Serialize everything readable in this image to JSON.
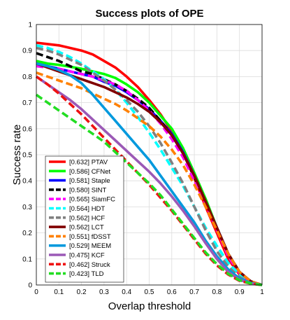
{
  "chart_data": {
    "type": "line",
    "title": "Success plots of OPE",
    "xlabel": "Overlap threshold",
    "ylabel": "Success rate",
    "xlim": [
      0,
      1
    ],
    "ylim": [
      0,
      1
    ],
    "xticks": [
      "0",
      "0.1",
      "0.2",
      "0.3",
      "0.4",
      "0.5",
      "0.6",
      "0.7",
      "0.8",
      "0.9",
      "1"
    ],
    "yticks": [
      "0",
      "0.1",
      "0.2",
      "0.3",
      "0.4",
      "0.5",
      "0.6",
      "0.7",
      "0.8",
      "0.9",
      "1"
    ],
    "grid": true,
    "legend_position": "bottom-left",
    "x": [
      0,
      0.05,
      0.1,
      0.15,
      0.2,
      0.25,
      0.3,
      0.35,
      0.4,
      0.45,
      0.5,
      0.55,
      0.6,
      0.65,
      0.7,
      0.75,
      0.8,
      0.85,
      0.9,
      0.95,
      1
    ],
    "series": [
      {
        "name": "[0.632] PTAV",
        "color": "#ff0000",
        "style": "solid",
        "values": [
          0.93,
          0.925,
          0.92,
          0.91,
          0.9,
          0.885,
          0.86,
          0.835,
          0.8,
          0.76,
          0.71,
          0.655,
          0.59,
          0.51,
          0.41,
          0.3,
          0.2,
          0.1,
          0.04,
          0.012,
          0.0
        ]
      },
      {
        "name": "[0.586] CFNet",
        "color": "#00ff00",
        "style": "solid",
        "values": [
          0.86,
          0.85,
          0.845,
          0.838,
          0.83,
          0.82,
          0.81,
          0.795,
          0.77,
          0.74,
          0.7,
          0.65,
          0.6,
          0.525,
          0.43,
          0.33,
          0.22,
          0.12,
          0.05,
          0.013,
          0.0
        ]
      },
      {
        "name": "[0.581] Staple",
        "color": "#0000ff",
        "style": "solid",
        "values": [
          0.85,
          0.84,
          0.83,
          0.82,
          0.81,
          0.8,
          0.78,
          0.765,
          0.74,
          0.71,
          0.675,
          0.63,
          0.58,
          0.51,
          0.42,
          0.32,
          0.22,
          0.12,
          0.05,
          0.014,
          0.0
        ]
      },
      {
        "name": "[0.580] SINT",
        "color": "#000000",
        "style": "dashed",
        "values": [
          0.89,
          0.875,
          0.86,
          0.84,
          0.82,
          0.81,
          0.79,
          0.77,
          0.745,
          0.715,
          0.68,
          0.63,
          0.575,
          0.505,
          0.415,
          0.32,
          0.22,
          0.12,
          0.05,
          0.014,
          0.0
        ]
      },
      {
        "name": "[0.565] SiamFC",
        "color": "#ff00ff",
        "style": "dashed",
        "values": [
          0.84,
          0.835,
          0.83,
          0.82,
          0.81,
          0.8,
          0.785,
          0.77,
          0.745,
          0.71,
          0.67,
          0.62,
          0.56,
          0.49,
          0.4,
          0.31,
          0.21,
          0.11,
          0.045,
          0.012,
          0.0
        ]
      },
      {
        "name": "[0.564] HDT",
        "color": "#00ffff",
        "style": "dashed",
        "values": [
          0.92,
          0.91,
          0.895,
          0.875,
          0.85,
          0.82,
          0.79,
          0.75,
          0.7,
          0.645,
          0.585,
          0.52,
          0.45,
          0.38,
          0.3,
          0.22,
          0.15,
          0.085,
          0.04,
          0.012,
          0.0
        ]
      },
      {
        "name": "[0.562] HCF",
        "color": "#808080",
        "style": "dashed",
        "values": [
          0.91,
          0.9,
          0.885,
          0.865,
          0.845,
          0.815,
          0.785,
          0.75,
          0.71,
          0.665,
          0.61,
          0.545,
          0.47,
          0.39,
          0.3,
          0.21,
          0.13,
          0.07,
          0.03,
          0.01,
          0.0
        ]
      },
      {
        "name": "[0.562] LCT",
        "color": "#800000",
        "style": "solid",
        "values": [
          0.85,
          0.835,
          0.82,
          0.805,
          0.79,
          0.775,
          0.76,
          0.74,
          0.72,
          0.695,
          0.665,
          0.625,
          0.575,
          0.505,
          0.42,
          0.32,
          0.22,
          0.12,
          0.05,
          0.014,
          0.0
        ]
      },
      {
        "name": "[0.551] fDSST",
        "color": "#ff8000",
        "style": "dashed",
        "values": [
          0.815,
          0.8,
          0.785,
          0.77,
          0.755,
          0.735,
          0.715,
          0.695,
          0.67,
          0.64,
          0.61,
          0.57,
          0.52,
          0.46,
          0.385,
          0.3,
          0.21,
          0.12,
          0.05,
          0.014,
          0.0
        ]
      },
      {
        "name": "[0.529] MEEM",
        "color": "#0099dd",
        "style": "solid",
        "values": [
          0.85,
          0.84,
          0.825,
          0.805,
          0.775,
          0.73,
          0.68,
          0.63,
          0.58,
          0.53,
          0.48,
          0.42,
          0.36,
          0.3,
          0.24,
          0.17,
          0.11,
          0.06,
          0.025,
          0.008,
          0.0
        ]
      },
      {
        "name": "[0.475] KCF",
        "color": "#9b59b6",
        "style": "solid",
        "values": [
          0.8,
          0.77,
          0.74,
          0.71,
          0.675,
          0.635,
          0.595,
          0.555,
          0.515,
          0.475,
          0.435,
          0.39,
          0.34,
          0.285,
          0.225,
          0.16,
          0.1,
          0.05,
          0.02,
          0.006,
          0.0
        ]
      },
      {
        "name": "[0.462] Struck",
        "color": "#ee1111",
        "style": "dashed",
        "values": [
          0.8,
          0.77,
          0.735,
          0.695,
          0.655,
          0.61,
          0.565,
          0.52,
          0.475,
          0.43,
          0.385,
          0.335,
          0.285,
          0.23,
          0.175,
          0.12,
          0.075,
          0.04,
          0.016,
          0.005,
          0.0
        ]
      },
      {
        "name": "[0.423] TLD",
        "color": "#22dd22",
        "style": "dashed",
        "values": [
          0.73,
          0.7,
          0.67,
          0.64,
          0.61,
          0.58,
          0.55,
          0.51,
          0.47,
          0.43,
          0.39,
          0.345,
          0.29,
          0.235,
          0.18,
          0.125,
          0.08,
          0.043,
          0.018,
          0.006,
          0.0
        ]
      }
    ]
  }
}
